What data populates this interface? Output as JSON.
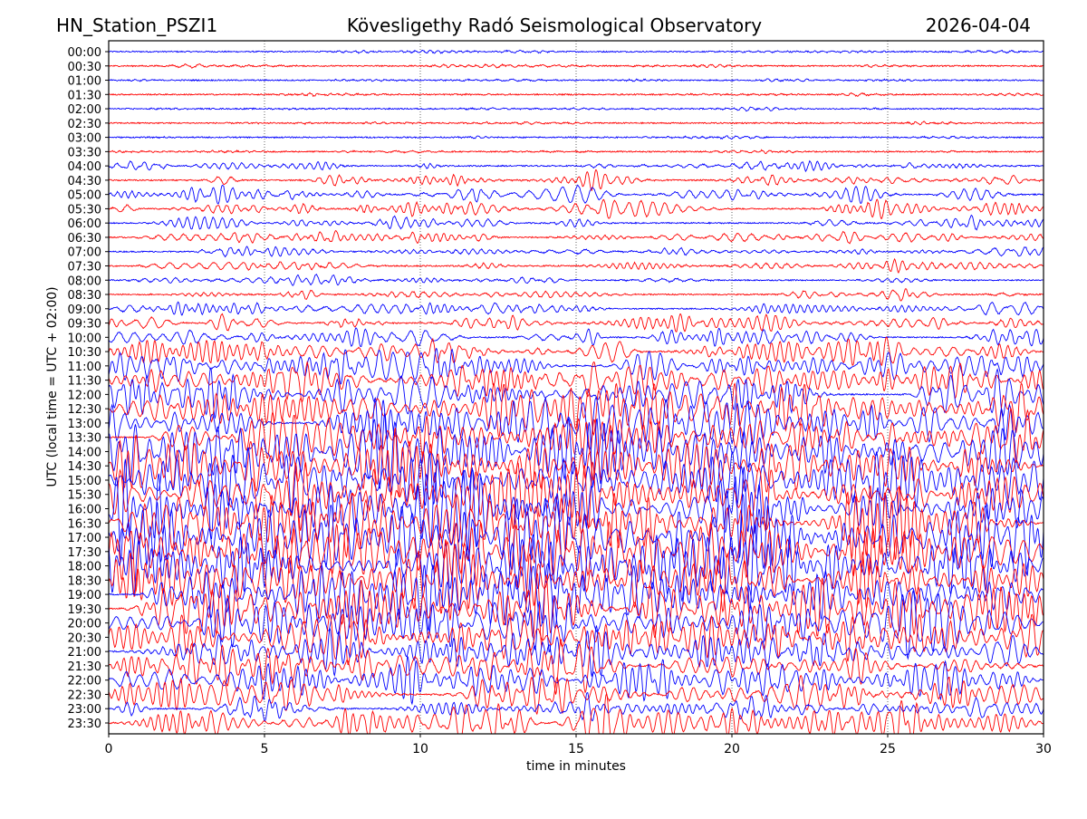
{
  "chart_data": {
    "type": "line",
    "title_left": "HN_Station_PSZI1",
    "title_center": "Kövesligethy Radó Seismological Observatory",
    "title_right": "2026-04-04",
    "xlabel": "time in minutes",
    "ylabel": "UTC (local time = UTC + 02:00)",
    "xlim": [
      0,
      30
    ],
    "xticks": [
      "0",
      "5",
      "10",
      "15",
      "20",
      "25",
      "30"
    ],
    "xtick_values": [
      0,
      5,
      10,
      15,
      20,
      25,
      30
    ],
    "grid": "vertical dotted at major x ticks",
    "series_colors": [
      "#0000ff",
      "#ff0000"
    ],
    "rows": [
      "00:00",
      "00:30",
      "01:00",
      "01:30",
      "02:00",
      "02:30",
      "03:00",
      "03:30",
      "04:00",
      "04:30",
      "05:00",
      "05:30",
      "06:00",
      "06:30",
      "07:00",
      "07:30",
      "08:00",
      "08:30",
      "09:00",
      "09:30",
      "10:00",
      "10:30",
      "11:00",
      "11:30",
      "12:00",
      "12:30",
      "13:00",
      "13:30",
      "14:00",
      "14:30",
      "15:00",
      "15:30",
      "16:00",
      "16:30",
      "17:00",
      "17:30",
      "18:00",
      "18:30",
      "19:00",
      "19:30",
      "20:00",
      "20:30",
      "21:00",
      "21:30",
      "22:00",
      "22:30",
      "23:00",
      "23:30"
    ],
    "relative_amplitude": [
      1,
      1,
      0.8,
      0.8,
      0.8,
      0.8,
      0.8,
      0.8,
      3,
      4,
      5,
      5,
      4,
      4,
      3,
      3,
      2.5,
      3,
      4,
      5,
      6,
      7,
      9,
      9,
      10,
      11,
      12,
      12,
      13,
      13,
      14,
      14,
      15,
      15,
      15,
      15,
      15,
      14,
      14,
      13,
      13,
      12,
      11,
      10,
      10,
      9,
      6,
      10
    ]
  }
}
